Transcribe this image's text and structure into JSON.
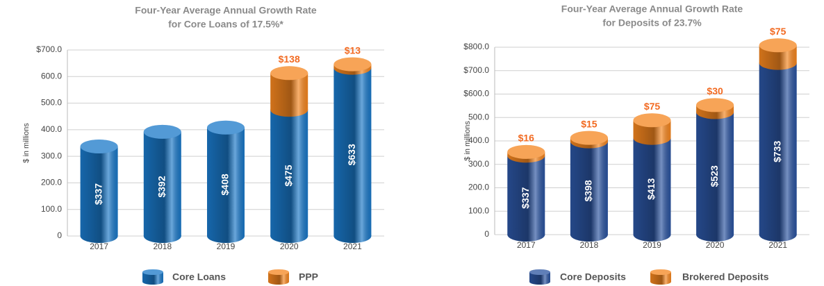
{
  "chart_data": [
    {
      "type": "bar",
      "stacked": true,
      "title": [
        "Four-Year Average Annual Growth Rate",
        "for Core Loans of 17.5%*"
      ],
      "ylabel": "$ in millions",
      "categories": [
        "2017",
        "2018",
        "2019",
        "2020",
        "2021"
      ],
      "series": [
        {
          "name": "Core Loans",
          "color": "#1a78c8",
          "values": [
            337,
            392,
            408,
            475,
            633
          ],
          "value_labels": [
            "$337",
            "$392",
            "$408",
            "$475",
            "$633"
          ]
        },
        {
          "name": "PPP",
          "color": "#f5861f",
          "values": [
            null,
            null,
            null,
            138,
            13
          ],
          "value_labels": [
            null,
            null,
            null,
            "$138",
            "$13"
          ]
        }
      ],
      "ylim": [
        0,
        700
      ],
      "yticks": [
        0,
        {
          "value": 100,
          "label": "100.0"
        },
        {
          "value": 200,
          "label": "200.0"
        },
        {
          "value": 300,
          "label": "300.0"
        },
        {
          "value": 400,
          "label": "400.0"
        },
        {
          "value": 500,
          "label": "500.0"
        },
        {
          "value": 600,
          "label": "600.0"
        },
        {
          "value": 700,
          "label": "$700.0"
        }
      ],
      "grid": true
    },
    {
      "type": "bar",
      "stacked": true,
      "title": [
        "Four-Year Average Annual Growth Rate",
        "for Deposits of 23.7%"
      ],
      "ylabel": "$ in millions",
      "categories": [
        "2017",
        "2018",
        "2019",
        "2020",
        "2021"
      ],
      "series": [
        {
          "name": "Core Deposits",
          "color": "#2b54a0",
          "values": [
            337,
            398,
            413,
            523,
            733
          ],
          "value_labels": [
            "$337",
            "$398",
            "$413",
            "$523",
            "$733"
          ]
        },
        {
          "name": "Brokered Deposits",
          "color": "#f5861f",
          "values": [
            16,
            15,
            75,
            30,
            75
          ],
          "value_labels": [
            "$16",
            "$15",
            "$75",
            "$30",
            "$75"
          ]
        }
      ],
      "ylim": [
        0,
        800
      ],
      "yticks": [
        0,
        {
          "value": 100,
          "label": "100.0"
        },
        {
          "value": 200,
          "label": "200.0"
        },
        {
          "value": 300,
          "label": "300.0"
        },
        {
          "value": 400,
          "label": "400.0"
        },
        {
          "value": 500,
          "label": "500.0"
        },
        {
          "value": 600,
          "label": "$600.0"
        },
        {
          "value": 700,
          "label": "$700.0"
        },
        {
          "value": 800,
          "label": "$800.0"
        }
      ],
      "grid": true
    }
  ]
}
